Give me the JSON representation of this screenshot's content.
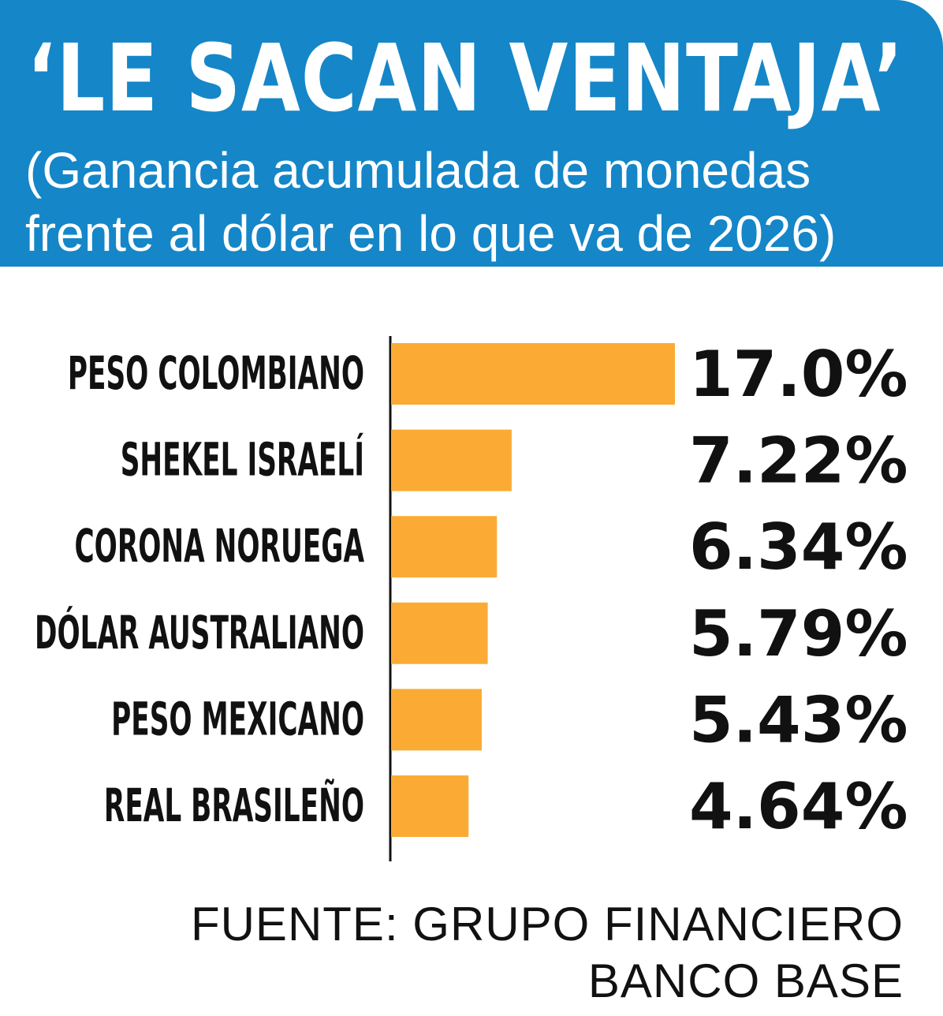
{
  "header": {
    "title": "‘LE SACAN VENTAJA’",
    "subtitle_line1": "(Ganancia acumulada de monedas",
    "subtitle_line2": "frente al dólar en lo que va de 2026)"
  },
  "colors": {
    "header_bg": "#1586c8",
    "bar": "#fbab34",
    "text": "#111111"
  },
  "chart_data": {
    "type": "bar",
    "orientation": "horizontal",
    "categories": [
      "PESO COLOMBIANO",
      "SHEKEL ISRAELÍ",
      "CORONA NORUEGA",
      "DÓLAR AUSTRALIANO",
      "PESO MEXICANO",
      "REAL BRASILEÑO"
    ],
    "values": [
      17.0,
      7.22,
      6.34,
      5.79,
      5.43,
      4.64
    ],
    "value_labels": [
      "17.0%",
      "7.22%",
      "6.34%",
      "5.79%",
      "5.43%",
      "4.64%"
    ],
    "unit": "%",
    "xlim": [
      0,
      17.0
    ],
    "grid": false,
    "legend": "none"
  },
  "source": {
    "line1": "FUENTE: GRUPO FINANCIERO",
    "line2": "BANCO BASE"
  }
}
